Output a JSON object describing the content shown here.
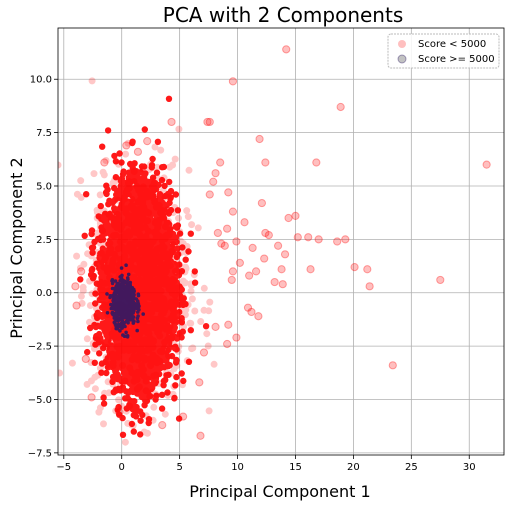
{
  "chart_data": {
    "type": "scatter",
    "title": "PCA with 2 Components",
    "xlabel": "Principal Component 1",
    "ylabel": "Principal Component 2",
    "xlim": [
      -5.5,
      33
    ],
    "ylim": [
      -7.6,
      12.4
    ],
    "xticks": [
      -5,
      0,
      5,
      10,
      15,
      20,
      25,
      30
    ],
    "xtick_labels": [
      "−5",
      "0",
      "5",
      "10",
      "15",
      "20",
      "25",
      "30"
    ],
    "yticks": [
      -7.5,
      -5.0,
      -2.5,
      0.0,
      2.5,
      5.0,
      7.5,
      10.0
    ],
    "ytick_labels": [
      "−7.5",
      "−5.0",
      "−2.5",
      "0.0",
      "2.5",
      "5.0",
      "7.5",
      "10.0"
    ],
    "grid": true,
    "legend_position": "top-right",
    "series": [
      {
        "name": "Score < 5000",
        "color": "#ff0000",
        "alpha": 0.25,
        "outliers": [
          [
            14.2,
            11.4
          ],
          [
            9.6,
            9.9
          ],
          [
            18.9,
            8.7
          ],
          [
            7.6,
            8.0
          ],
          [
            7.4,
            8.0
          ],
          [
            4.3,
            8.0
          ],
          [
            11.9,
            7.2
          ],
          [
            31.5,
            6.0
          ],
          [
            16.8,
            6.1
          ],
          [
            12.4,
            6.1
          ],
          [
            8.5,
            6.1
          ],
          [
            -1.5,
            6.1
          ],
          [
            8.1,
            5.6
          ],
          [
            7.9,
            5.2
          ],
          [
            9.2,
            4.7
          ],
          [
            12.1,
            4.2
          ],
          [
            7.6,
            4.6
          ],
          [
            9.6,
            3.8
          ],
          [
            15.0,
            3.6
          ],
          [
            14.4,
            3.5
          ],
          [
            10.6,
            3.3
          ],
          [
            9.1,
            3.0
          ],
          [
            8.3,
            2.8
          ],
          [
            12.4,
            2.8
          ],
          [
            12.7,
            2.7
          ],
          [
            15.2,
            2.6
          ],
          [
            16.1,
            2.6
          ],
          [
            17.0,
            2.5
          ],
          [
            19.3,
            2.5
          ],
          [
            18.6,
            2.4
          ],
          [
            9.9,
            2.4
          ],
          [
            8.6,
            2.3
          ],
          [
            13.5,
            2.2
          ],
          [
            8.9,
            2.2
          ],
          [
            11.3,
            2.1
          ],
          [
            14.1,
            1.8
          ],
          [
            12.3,
            1.6
          ],
          [
            10.2,
            1.4
          ],
          [
            9.6,
            1.0
          ],
          [
            11.6,
            1.0
          ],
          [
            13.8,
            1.1
          ],
          [
            16.3,
            1.1
          ],
          [
            20.1,
            1.2
          ],
          [
            21.2,
            1.1
          ],
          [
            11.0,
            0.8
          ],
          [
            9.5,
            0.6
          ],
          [
            13.2,
            0.5
          ],
          [
            21.4,
            0.3
          ],
          [
            27.5,
            0.6
          ],
          [
            13.9,
            0.4
          ],
          [
            10.9,
            -0.7
          ],
          [
            11.2,
            -0.9
          ],
          [
            11.8,
            -1.1
          ],
          [
            9.2,
            -1.5
          ],
          [
            8.1,
            -1.6
          ],
          [
            9.9,
            -2.1
          ],
          [
            9.1,
            -2.4
          ],
          [
            23.4,
            -3.4
          ],
          [
            -3.1,
            -3.1
          ],
          [
            6.8,
            -6.7
          ],
          [
            5.3,
            -5.8
          ],
          [
            3.5,
            -6.2
          ],
          [
            -0.2,
            -5.6
          ],
          [
            -2.6,
            -4.9
          ],
          [
            7.1,
            -2.8
          ],
          [
            6.7,
            -4.2
          ],
          [
            -4.0,
            0.3
          ],
          [
            -3.5,
            1.0
          ],
          [
            -3.9,
            -0.6
          ],
          [
            0.4,
            6.9
          ],
          [
            2.2,
            7.1
          ],
          [
            1.4,
            6.6
          ]
        ]
      },
      {
        "name": "Score >= 5000",
        "color": "#2e1a66",
        "alpha": 0.9
      }
    ]
  }
}
